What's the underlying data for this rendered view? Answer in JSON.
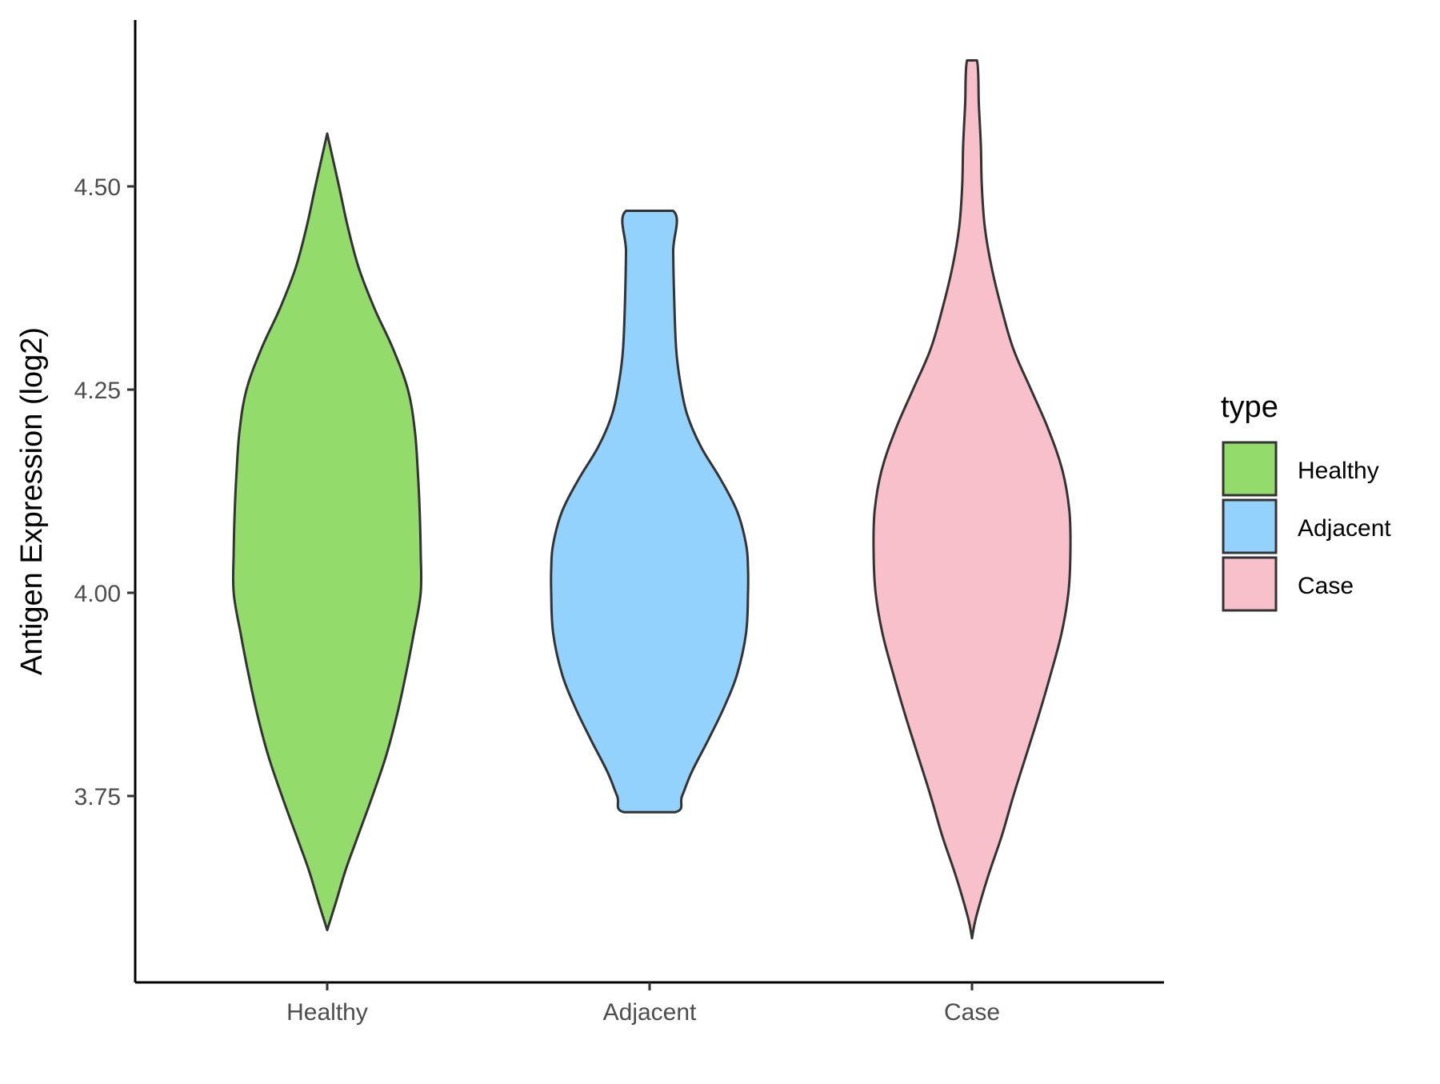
{
  "chart_data": {
    "type": "violin",
    "title": "",
    "xlabel": "",
    "ylabel": "Antigen Expression (log2)",
    "ylim": [
      3.5,
      4.72
    ],
    "yticks": [
      "3.75",
      "4.00",
      "4.25",
      "4.50"
    ],
    "ytick_values": [
      3.75,
      4.0,
      4.25,
      4.5
    ],
    "grid": false,
    "legend": {
      "title": "type",
      "placement": "right",
      "entries": [
        "Healthy",
        "Adjacent",
        "Case"
      ]
    },
    "categories": [
      "Healthy",
      "Adjacent",
      "Case"
    ],
    "series": [
      {
        "name": "Healthy",
        "color": "#93dc6b",
        "min": 3.585,
        "max": 4.565,
        "density_profile": [
          [
            3.585,
            0.0
          ],
          [
            3.62,
            0.09
          ],
          [
            3.66,
            0.19
          ],
          [
            3.7,
            0.31
          ],
          [
            3.75,
            0.46
          ],
          [
            3.8,
            0.6
          ],
          [
            3.85,
            0.71
          ],
          [
            3.9,
            0.8
          ],
          [
            3.95,
            0.88
          ],
          [
            4.0,
            0.95
          ],
          [
            4.05,
            0.95
          ],
          [
            4.1,
            0.94
          ],
          [
            4.15,
            0.92
          ],
          [
            4.2,
            0.89
          ],
          [
            4.25,
            0.82
          ],
          [
            4.3,
            0.67
          ],
          [
            4.35,
            0.48
          ],
          [
            4.4,
            0.32
          ],
          [
            4.45,
            0.21
          ],
          [
            4.5,
            0.12
          ],
          [
            4.565,
            0.0
          ]
        ]
      },
      {
        "name": "Adjacent",
        "color": "#92d2fc",
        "min": 3.73,
        "max": 4.47,
        "density_profile": [
          [
            3.73,
            0.26
          ],
          [
            3.75,
            0.33
          ],
          [
            3.78,
            0.43
          ],
          [
            3.82,
            0.6
          ],
          [
            3.86,
            0.76
          ],
          [
            3.9,
            0.89
          ],
          [
            3.95,
            0.98
          ],
          [
            4.0,
            1.0
          ],
          [
            4.03,
            1.0
          ],
          [
            4.06,
            0.98
          ],
          [
            4.1,
            0.89
          ],
          [
            4.14,
            0.72
          ],
          [
            4.18,
            0.52
          ],
          [
            4.22,
            0.38
          ],
          [
            4.26,
            0.31
          ],
          [
            4.3,
            0.27
          ],
          [
            4.36,
            0.25
          ],
          [
            4.42,
            0.24
          ],
          [
            4.47,
            0.24
          ]
        ]
      },
      {
        "name": "Case",
        "color": "#f8c0cb",
        "min": 3.575,
        "max": 4.655,
        "density_profile": [
          [
            3.575,
            0.0
          ],
          [
            3.6,
            0.04
          ],
          [
            3.65,
            0.16
          ],
          [
            3.7,
            0.3
          ],
          [
            3.75,
            0.42
          ],
          [
            3.8,
            0.55
          ],
          [
            3.85,
            0.68
          ],
          [
            3.9,
            0.8
          ],
          [
            3.95,
            0.91
          ],
          [
            4.0,
            0.98
          ],
          [
            4.05,
            1.0
          ],
          [
            4.1,
            0.99
          ],
          [
            4.15,
            0.92
          ],
          [
            4.2,
            0.78
          ],
          [
            4.25,
            0.6
          ],
          [
            4.3,
            0.42
          ],
          [
            4.35,
            0.3
          ],
          [
            4.4,
            0.2
          ],
          [
            4.45,
            0.13
          ],
          [
            4.5,
            0.1
          ],
          [
            4.55,
            0.09
          ],
          [
            4.6,
            0.07
          ],
          [
            4.655,
            0.05
          ]
        ]
      }
    ]
  }
}
